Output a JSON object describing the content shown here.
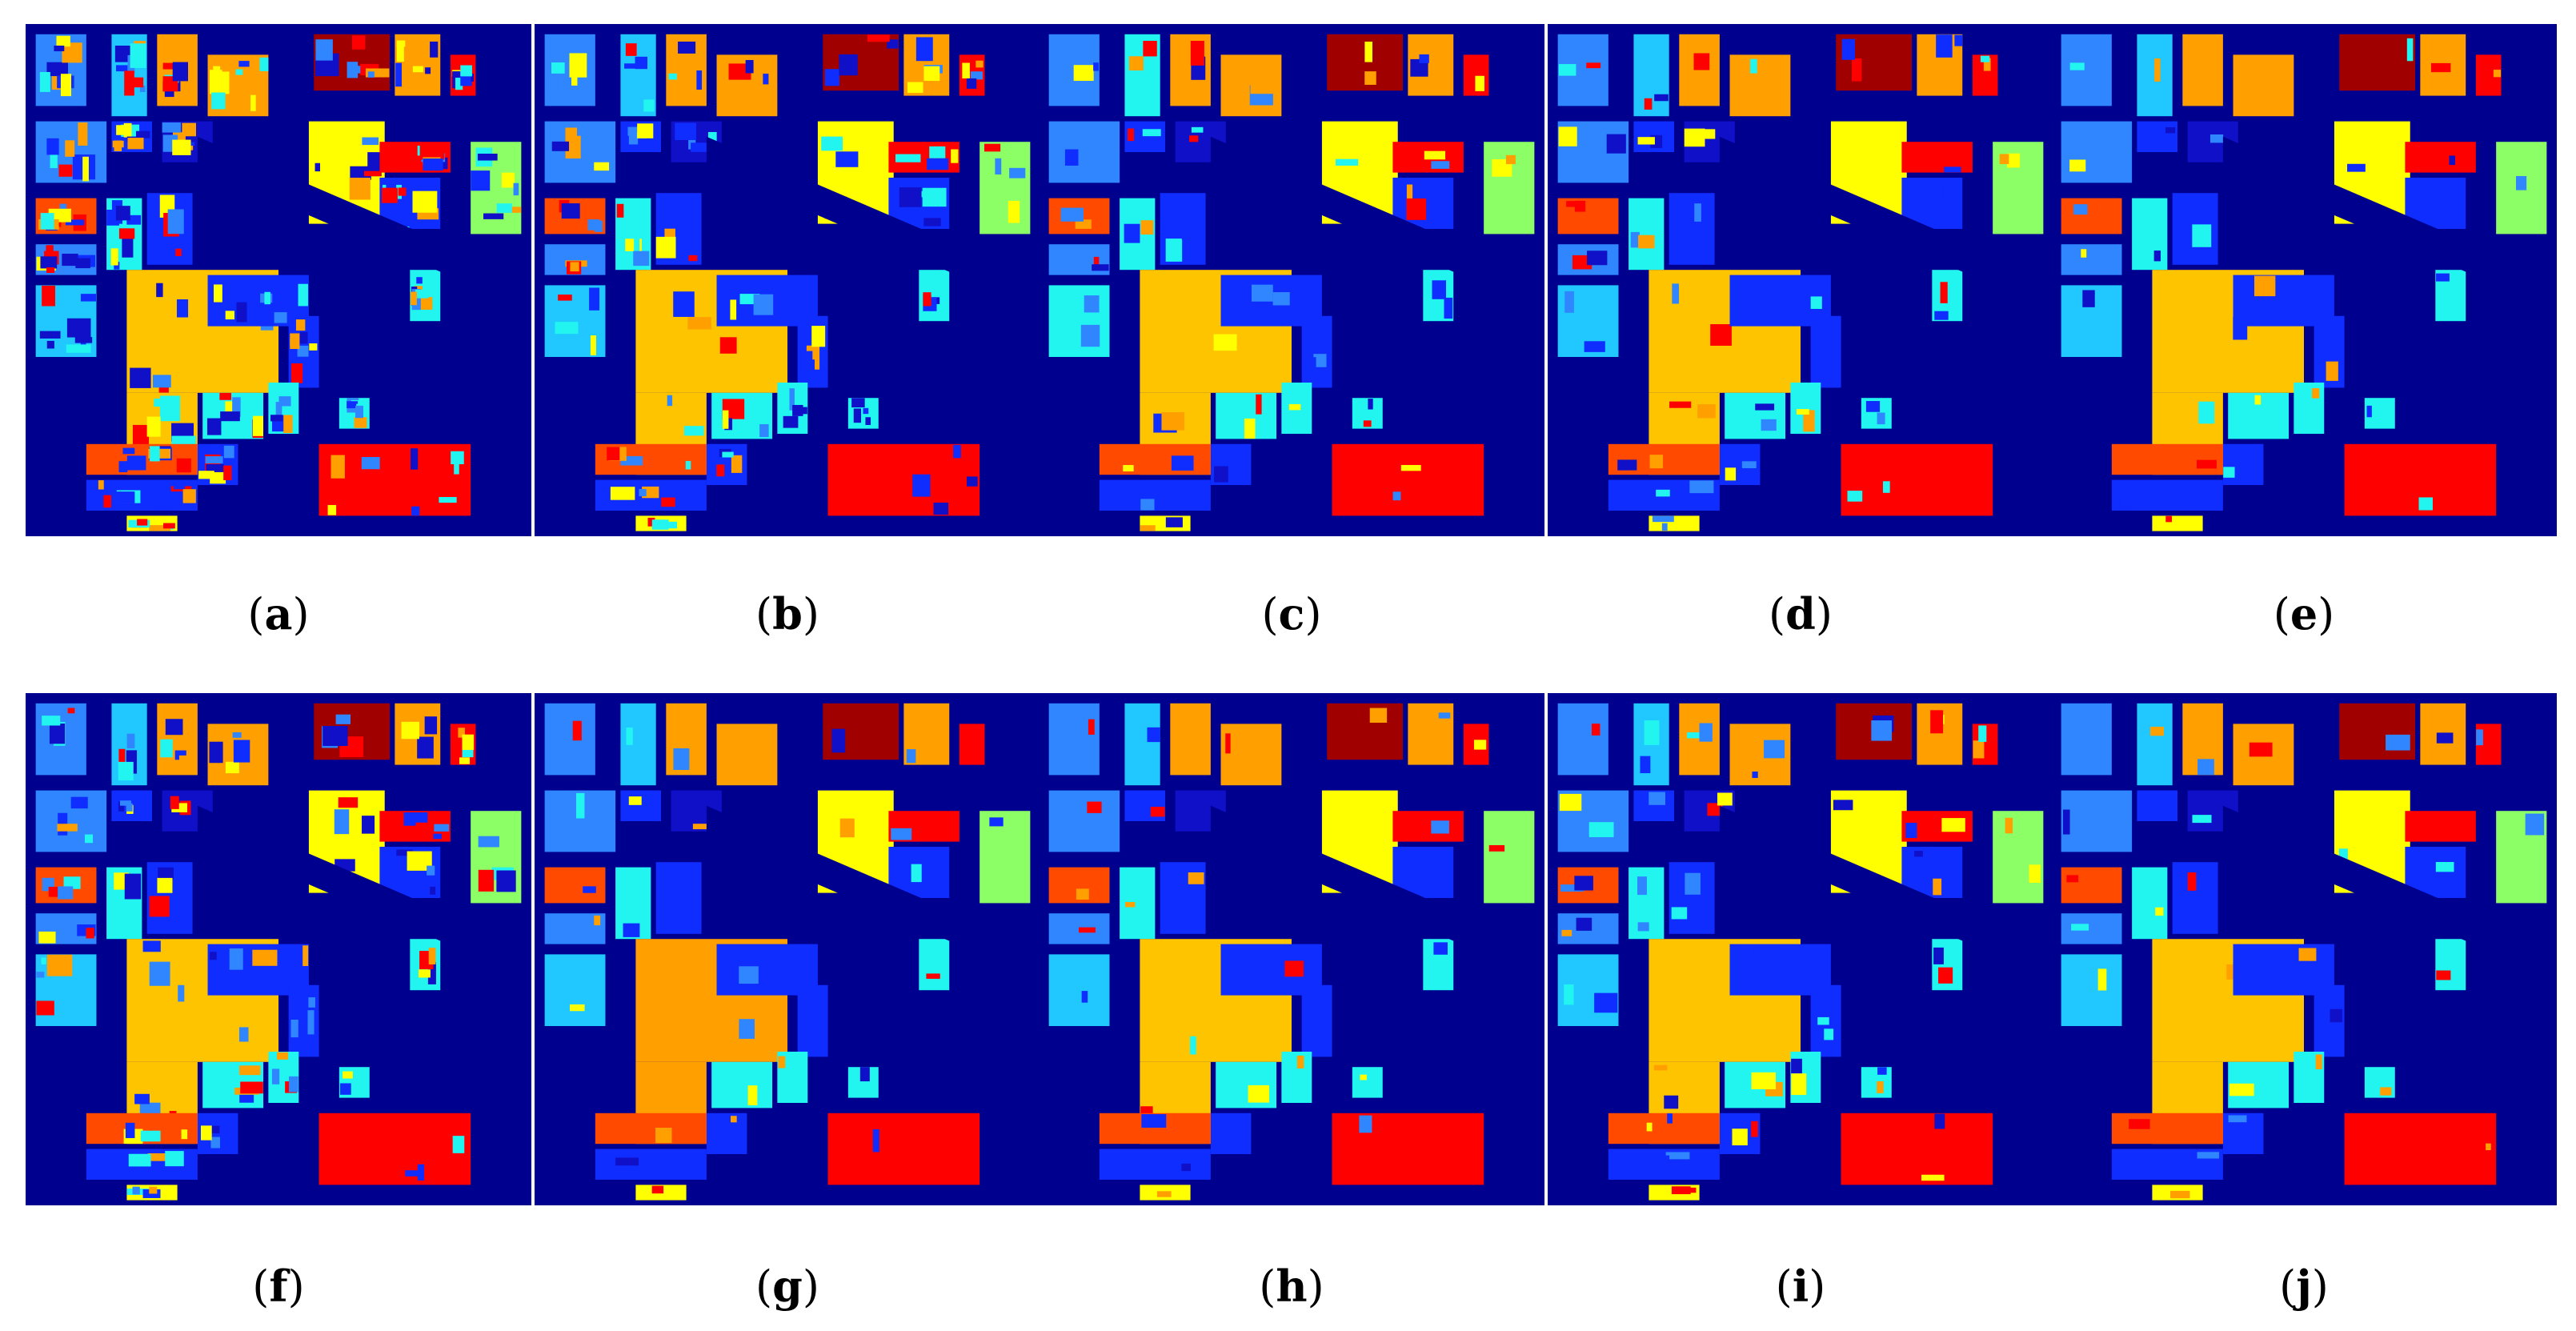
{
  "figure": {
    "panels": [
      {
        "label": "a"
      },
      {
        "label": "b"
      },
      {
        "label": "c"
      },
      {
        "label": "d"
      },
      {
        "label": "e"
      },
      {
        "label": "f"
      },
      {
        "label": "g"
      },
      {
        "label": "h"
      },
      {
        "label": "i"
      },
      {
        "label": "j"
      }
    ],
    "colors": {
      "background": "#00008f",
      "dark_red": "#a00000",
      "red": "#ff0000",
      "orange_red": "#ff4a00",
      "orange": "#ff9f00",
      "yellow_orange": "#ffc400",
      "yellow": "#ffff00",
      "light_green": "#8cff66",
      "cyan": "#22f5f0",
      "sky": "#20c8ff",
      "light_blue": "#2f86ff",
      "blue": "#0f2dff",
      "navy_blue": "#1010c8"
    }
  }
}
